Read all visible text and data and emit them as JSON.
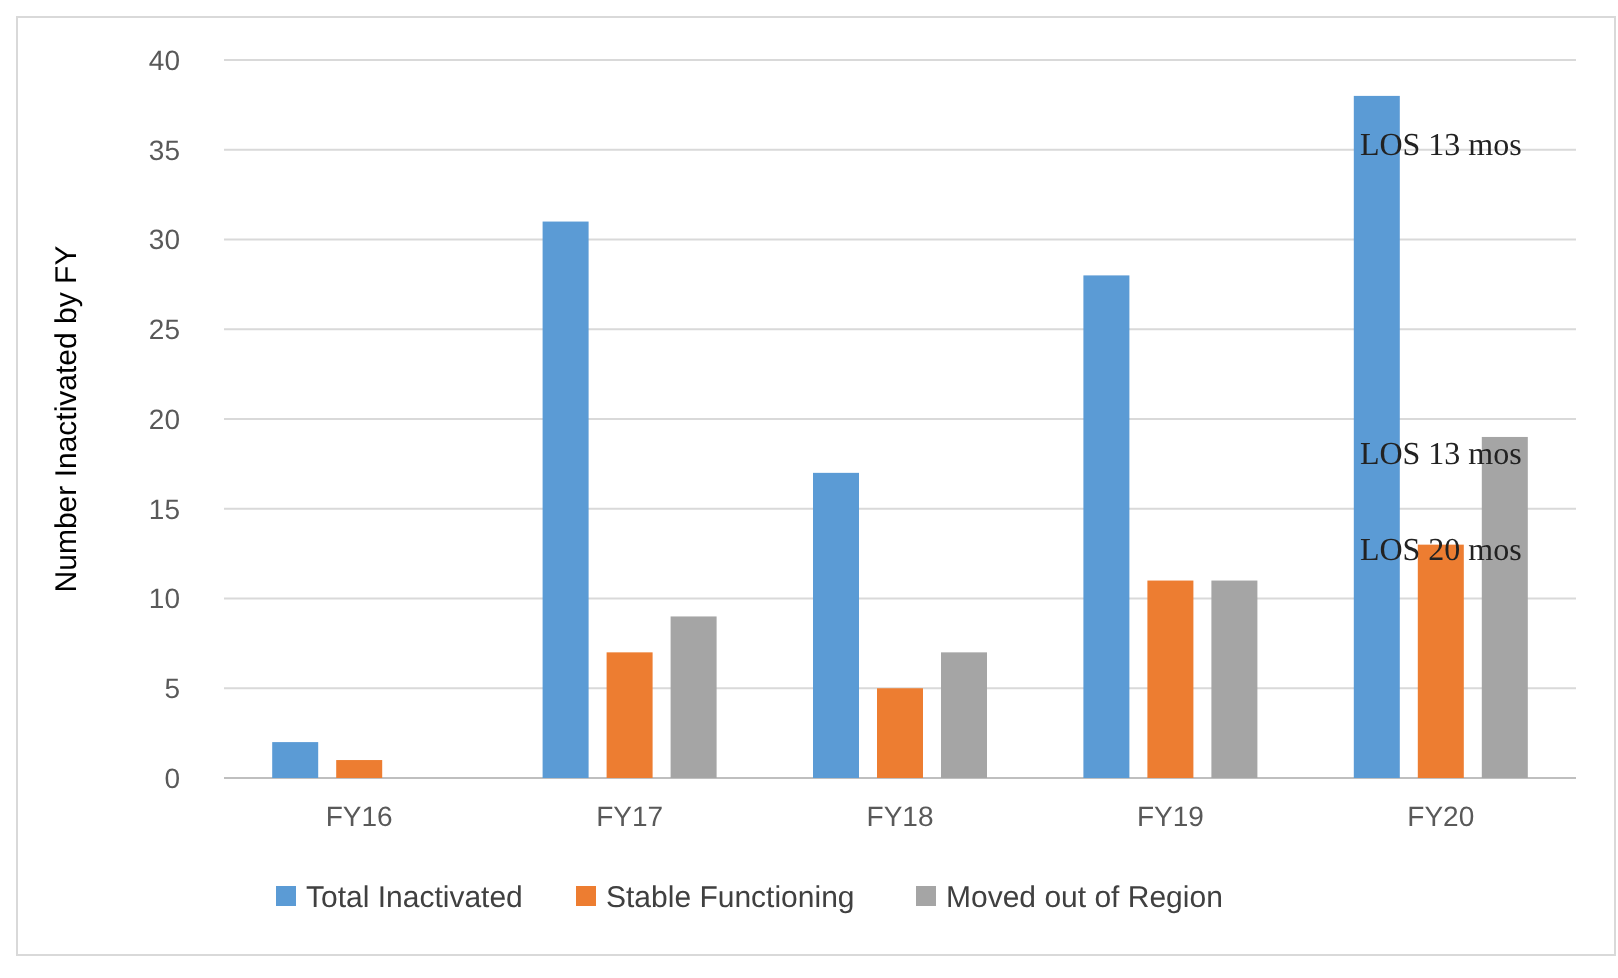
{
  "chart_data": {
    "type": "bar",
    "ylabel": "Number Inactivated by FY",
    "categories": [
      "FY16",
      "FY17",
      "FY18",
      "FY19",
      "FY20"
    ],
    "series": [
      {
        "name": "Total Inactivated",
        "color": "#5b9bd5",
        "values": [
          2,
          31,
          17,
          28,
          38
        ]
      },
      {
        "name": "Stable Functioning",
        "color": "#ed7d31",
        "values": [
          1,
          7,
          5,
          11,
          13
        ]
      },
      {
        "name": "Moved out of Region",
        "color": "#a5a5a5",
        "values": [
          null,
          9,
          7,
          11,
          19
        ]
      }
    ],
    "ylim": [
      0,
      40
    ],
    "yticks": [
      0,
      5,
      10,
      15,
      20,
      25,
      30,
      35,
      40
    ],
    "grid": "y",
    "legend": "bottom",
    "annotations": [
      "LOS 13 mos",
      "LOS 13 mos",
      "LOS 20 mos"
    ]
  }
}
